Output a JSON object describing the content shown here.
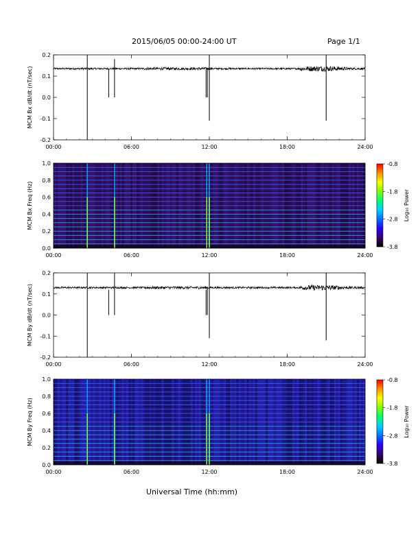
{
  "header": {
    "date_range": "2015/06/05  00:00-24:00 UT",
    "page": "Page 1/1"
  },
  "footer": {
    "xlabel": "Universal Time (hh:mm)"
  },
  "colorbar": {
    "label": "Log₁₀ Power",
    "ticks": [
      "-0.8",
      "-1.8",
      "-2.8",
      "-3.8"
    ],
    "range": [
      -3.8,
      -0.8
    ],
    "colors": [
      "#000000",
      "#3a006a",
      "#2a00ff",
      "#0070ff",
      "#00d0ff",
      "#00ff70",
      "#80ff00",
      "#ffff00",
      "#ff9000",
      "#ff0000"
    ]
  },
  "chart_data": [
    {
      "type": "line",
      "ylabel": "MCM Bx dB/dt (nT/sec)",
      "xticks": [
        "00:00",
        "06:00",
        "12:00",
        "18:00",
        "24:00"
      ],
      "xlim": [
        0,
        24
      ],
      "yticks": [
        "0.2",
        "0.1",
        "0.0",
        "-0.1",
        "-0.2"
      ],
      "ylim": [
        -0.2,
        0.2
      ],
      "baseline": 0.135,
      "spikes": [
        {
          "t": 2.6,
          "low": -0.2,
          "high": 0.2
        },
        {
          "t": 4.25,
          "low": 0.0,
          "high": 0.13
        },
        {
          "t": 4.7,
          "low": 0.0,
          "high": 0.18
        },
        {
          "t": 11.75,
          "low": 0.0,
          "high": 0.13
        },
        {
          "t": 11.85,
          "low": 0.0,
          "high": 0.14
        },
        {
          "t": 12.0,
          "low": -0.11,
          "high": 0.2
        },
        {
          "t": 21.0,
          "low": -0.11,
          "high": 0.2
        }
      ]
    },
    {
      "type": "heatmap",
      "ylabel": "MCM Bx Freq (Hz)",
      "xticks": [
        "00:00",
        "06:00",
        "12:00",
        "18:00",
        "24:00"
      ],
      "xlim": [
        0,
        24
      ],
      "yticks": [
        "1.0",
        "0.8",
        "0.6",
        "0.4",
        "0.2",
        "0.0"
      ],
      "ylim": [
        0,
        1.0
      ],
      "harmonic_lines_hz": [
        0.05,
        0.1,
        0.15,
        0.2,
        0.25,
        0.3,
        0.35,
        0.4,
        0.45,
        0.5,
        0.55,
        0.6,
        0.65,
        0.7,
        0.75,
        0.8,
        0.85,
        0.9,
        0.95
      ],
      "bright_columns": [
        2.6,
        4.7,
        11.8,
        12.0
      ]
    },
    {
      "type": "line",
      "ylabel": "MCM By dB/dt (nT/sec)",
      "xticks": [
        "00:00",
        "06:00",
        "12:00",
        "18:00",
        "24:00"
      ],
      "xlim": [
        0,
        24
      ],
      "yticks": [
        "0.2",
        "0.1",
        "0.0",
        "-0.1",
        "-0.2"
      ],
      "ylim": [
        -0.2,
        0.2
      ],
      "baseline": 0.13,
      "spikes": [
        {
          "t": 2.6,
          "low": -0.2,
          "high": 0.2
        },
        {
          "t": 4.25,
          "low": 0.0,
          "high": 0.12
        },
        {
          "t": 4.7,
          "low": 0.0,
          "high": 0.2
        },
        {
          "t": 11.75,
          "low": 0.0,
          "high": 0.12
        },
        {
          "t": 11.85,
          "low": 0.0,
          "high": 0.13
        },
        {
          "t": 12.0,
          "low": -0.11,
          "high": 0.2
        },
        {
          "t": 21.0,
          "low": -0.12,
          "high": 0.2
        }
      ]
    },
    {
      "type": "heatmap",
      "ylabel": "MCM By Freq (Hz)",
      "xticks": [
        "00:00",
        "06:00",
        "12:00",
        "18:00",
        "24:00"
      ],
      "xlim": [
        0,
        24
      ],
      "yticks": [
        "1.0",
        "0.8",
        "0.6",
        "0.4",
        "0.2",
        "0.0"
      ],
      "ylim": [
        0,
        1.0
      ],
      "harmonic_lines_hz": [
        0.05,
        0.1,
        0.15,
        0.2,
        0.25,
        0.3,
        0.35,
        0.4,
        0.45,
        0.5,
        0.55,
        0.6,
        0.65,
        0.7,
        0.75,
        0.8,
        0.85,
        0.9,
        0.95
      ],
      "bright_columns": [
        2.6,
        4.7,
        11.8,
        12.0
      ]
    }
  ]
}
